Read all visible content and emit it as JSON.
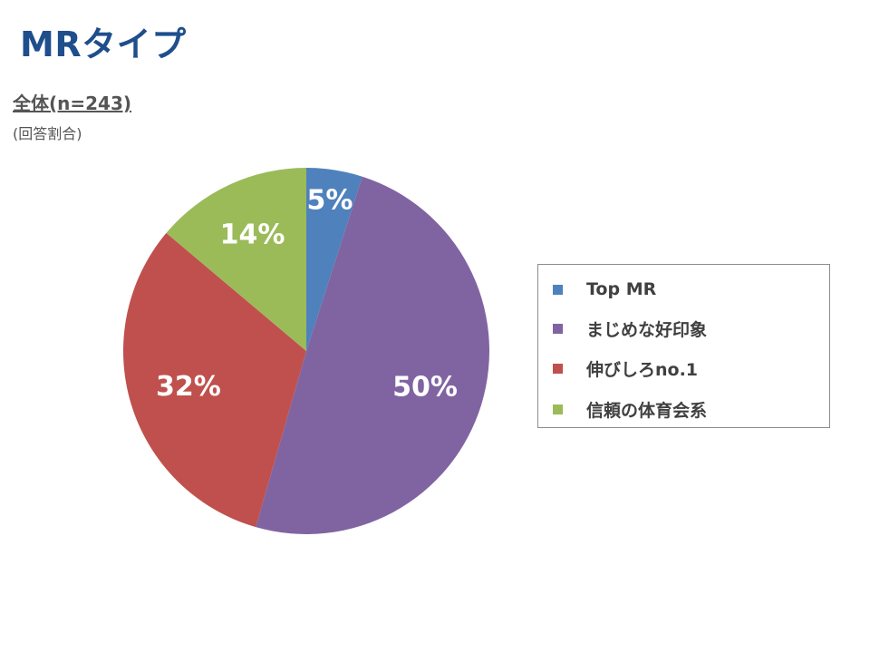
{
  "page": {
    "title": "MRタイプ",
    "subtitle": "全体(n=243)",
    "note": "(回答割合)"
  },
  "chart_data": {
    "type": "pie",
    "title": "",
    "categories": [
      "Top MR",
      "まじめな好印象",
      "伸びしろno.1",
      "信頼の体育会系"
    ],
    "values": [
      5,
      50,
      32,
      14
    ],
    "value_labels": [
      "5%",
      "50%",
      "32%",
      "14%"
    ],
    "colors": [
      "#4f81bd",
      "#8064a2",
      "#c0504d",
      "#9bbb59"
    ],
    "start_angle": "12 o'clock",
    "direction": "clockwise",
    "legend": {
      "placement": "right",
      "entries": [
        "Top MR",
        "まじめな好印象",
        "伸びしろno.1",
        "信頼の体育会系"
      ]
    }
  }
}
